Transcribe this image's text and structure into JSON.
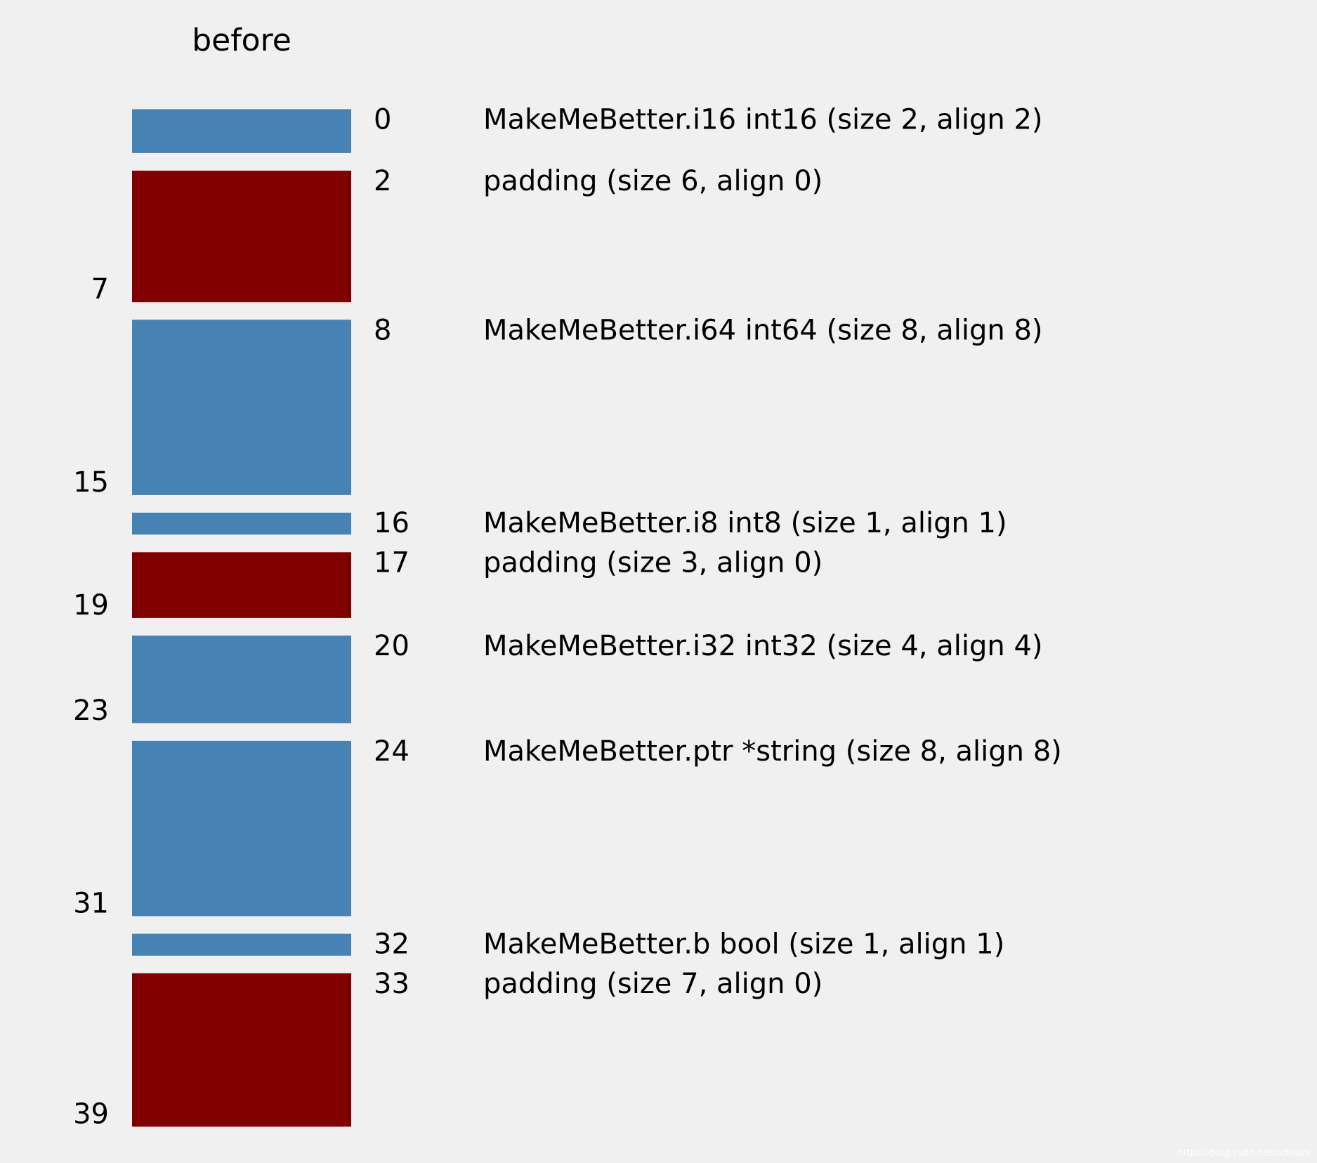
{
  "title": "before",
  "colors": {
    "field": "#4682b4",
    "padding": "#800000"
  },
  "blocks": [
    {
      "offset": 0,
      "size": 2,
      "kind": "field",
      "text": "MakeMeBetter.i16 int16 (size 2, align 2)"
    },
    {
      "offset": 2,
      "size": 6,
      "end": 7,
      "kind": "padding",
      "text": "padding (size 6, align 0)"
    },
    {
      "offset": 8,
      "size": 8,
      "end": 15,
      "kind": "field",
      "text": "MakeMeBetter.i64 int64 (size 8, align 8)"
    },
    {
      "offset": 16,
      "size": 1,
      "kind": "field",
      "text": "MakeMeBetter.i8 int8 (size 1, align 1)"
    },
    {
      "offset": 17,
      "size": 3,
      "end": 19,
      "kind": "padding",
      "text": "padding (size 3, align 0)"
    },
    {
      "offset": 20,
      "size": 4,
      "end": 23,
      "kind": "field",
      "text": "MakeMeBetter.i32 int32 (size 4, align 4)"
    },
    {
      "offset": 24,
      "size": 8,
      "end": 31,
      "kind": "field",
      "text": "MakeMeBetter.ptr *string (size 8, align 8)"
    },
    {
      "offset": 32,
      "size": 1,
      "kind": "field",
      "text": "MakeMeBetter.b bool (size 1, align 1)"
    },
    {
      "offset": 33,
      "size": 7,
      "end": 39,
      "kind": "padding",
      "text": "padding (size 7, align 0)"
    }
  ],
  "watermark": "https://blog.csdn.net/cchears"
}
